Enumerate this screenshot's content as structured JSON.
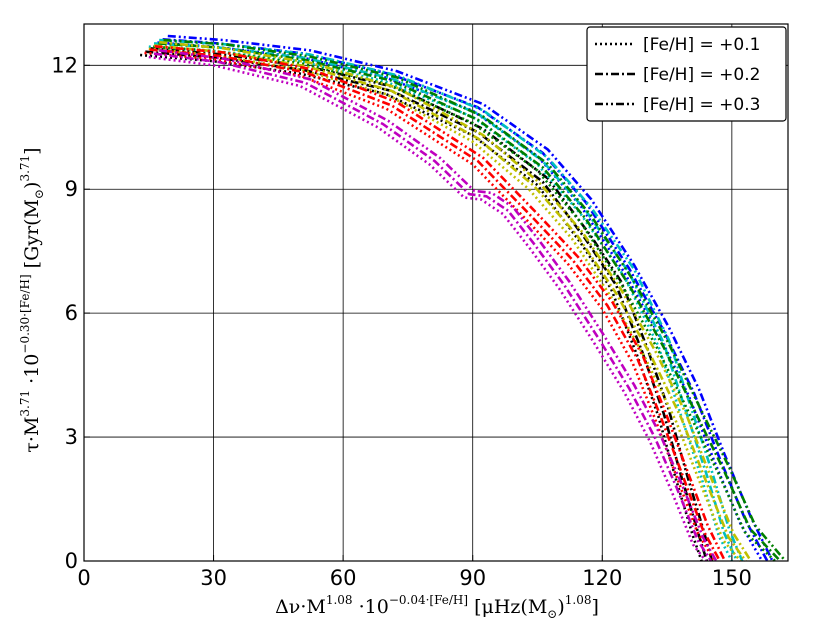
{
  "chart_data": {
    "type": "line",
    "title": "",
    "xlabel": {
      "prefix": "Δν·M",
      "p1": "1.08",
      "mid": " ·10",
      "p2": "−0.04·[Fe/H]",
      "tail": " [μHz(M",
      "sub": "⊙",
      "close": ")",
      "p3": "1.08",
      "end": "]"
    },
    "ylabel": {
      "prefix": "τ·M",
      "p1": "3.71",
      "mid": " ·10",
      "p2": "−0.30·[Fe/H]",
      "tail": " [Gyr(M",
      "sub": "⊙",
      "close": ")",
      "p3": "3.71",
      "end": "]"
    },
    "xlim": [
      0,
      163
    ],
    "ylim": [
      0,
      13
    ],
    "xticks": [
      0,
      30,
      60,
      90,
      120,
      150
    ],
    "yticks": [
      0,
      3,
      6,
      9,
      12
    ],
    "grid": true,
    "legend": {
      "position": "top-right",
      "entries": [
        {
          "label": "[Fe/H] = +0.1",
          "dash": "dotted"
        },
        {
          "label": "[Fe/H] = +0.2",
          "dash": "dashdot"
        },
        {
          "label": "[Fe/H] = +0.3",
          "dash": "dashdotdot"
        }
      ]
    },
    "series": [
      {
        "color": "#000000",
        "points": [
          [
            13,
            12.25
          ],
          [
            30,
            12.1
          ],
          [
            50,
            11.8
          ],
          [
            70,
            11.3
          ],
          [
            90,
            10.3
          ],
          [
            105,
            9.1
          ],
          [
            115,
            7.7
          ],
          [
            122,
            6.6
          ],
          [
            128,
            5.0
          ],
          [
            133,
            3.5
          ],
          [
            137,
            2.0
          ],
          [
            141,
            0.6
          ],
          [
            143,
            0.0
          ]
        ]
      },
      {
        "color": "#0000ff",
        "points": [
          [
            17,
            12.55
          ],
          [
            30,
            12.45
          ],
          [
            50,
            12.2
          ],
          [
            70,
            11.7
          ],
          [
            90,
            10.9
          ],
          [
            105,
            9.8
          ],
          [
            115,
            8.6
          ],
          [
            125,
            7.0
          ],
          [
            133,
            5.5
          ],
          [
            140,
            4.0
          ],
          [
            146,
            2.4
          ],
          [
            152,
            0.9
          ],
          [
            157,
            0.0
          ]
        ]
      },
      {
        "color": "#00bfbf",
        "points": [
          [
            15,
            12.45
          ],
          [
            30,
            12.35
          ],
          [
            50,
            12.1
          ],
          [
            70,
            11.6
          ],
          [
            90,
            10.75
          ],
          [
            105,
            9.6
          ],
          [
            115,
            8.4
          ],
          [
            125,
            6.9
          ],
          [
            133,
            5.2
          ],
          [
            138,
            3.6
          ],
          [
            143,
            2.0
          ],
          [
            147,
            0.6
          ],
          [
            150,
            0.0
          ]
        ]
      },
      {
        "color": "#007f00",
        "points": [
          [
            16,
            12.45
          ],
          [
            30,
            12.35
          ],
          [
            50,
            12.05
          ],
          [
            70,
            11.55
          ],
          [
            90,
            10.6
          ],
          [
            105,
            9.45
          ],
          [
            115,
            8.2
          ],
          [
            125,
            6.6
          ],
          [
            133,
            5.1
          ],
          [
            140,
            3.6
          ],
          [
            147,
            2.1
          ],
          [
            153,
            0.7
          ],
          [
            160,
            0.0
          ]
        ]
      },
      {
        "color": "#bfbf00",
        "points": [
          [
            15,
            12.4
          ],
          [
            30,
            12.25
          ],
          [
            50,
            11.9
          ],
          [
            70,
            11.3
          ],
          [
            90,
            10.15
          ],
          [
            103,
            9.0
          ],
          [
            113,
            7.8
          ],
          [
            122,
            6.4
          ],
          [
            130,
            4.9
          ],
          [
            137,
            3.4
          ],
          [
            143,
            1.8
          ],
          [
            148,
            0.5
          ],
          [
            152,
            0.0
          ]
        ]
      },
      {
        "color": "#ff0000",
        "points": [
          [
            14,
            12.3
          ],
          [
            30,
            12.15
          ],
          [
            50,
            11.75
          ],
          [
            70,
            10.95
          ],
          [
            90,
            9.6
          ],
          [
            103,
            8.2
          ],
          [
            112,
            7.2
          ],
          [
            120,
            6.1
          ],
          [
            127,
            4.8
          ],
          [
            132,
            3.5
          ],
          [
            137,
            2.1
          ],
          [
            142,
            0.7
          ],
          [
            146,
            0.0
          ]
        ]
      },
      {
        "color": "#bf00bf",
        "points": [
          [
            15,
            12.2
          ],
          [
            30,
            12.0
          ],
          [
            50,
            11.5
          ],
          [
            68,
            10.5
          ],
          [
            80,
            9.6
          ],
          [
            88,
            8.8
          ],
          [
            92,
            8.75
          ],
          [
            97,
            8.4
          ],
          [
            103,
            7.6
          ],
          [
            110,
            6.6
          ],
          [
            118,
            5.3
          ],
          [
            125,
            4.1
          ],
          [
            131,
            2.9
          ],
          [
            136,
            1.7
          ],
          [
            141,
            0.4
          ],
          [
            144,
            0.0
          ]
        ]
      }
    ]
  }
}
